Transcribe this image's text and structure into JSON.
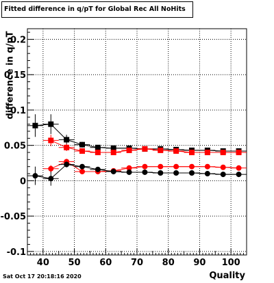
{
  "title": "Fitted difference in q/pT for Global Rec All NoHits",
  "footer": "Sat Oct 17 20:18:16 2020",
  "chart_data": {
    "type": "scatter",
    "xlabel": "Quality",
    "ylabel": "difference in q/pT",
    "xlim": [
      35,
      105
    ],
    "ylim": [
      -0.105,
      0.215
    ],
    "x_ticks": [
      40,
      50,
      60,
      70,
      80,
      90,
      100
    ],
    "y_ticks": [
      -0.1,
      -0.05,
      0,
      0.05,
      0.1,
      0.15,
      0.2
    ],
    "y_tick_labels": [
      "-0.1",
      "-0.05",
      "0",
      "0.05",
      "0.1",
      "0.15",
      "0.2"
    ],
    "grid": true,
    "series": [
      {
        "marker": "square",
        "color": "#000000",
        "x": [
          37.5,
          42.5,
          47.5,
          52.5,
          57.5,
          62.5,
          67.5,
          72.5,
          77.5,
          82.5,
          87.5,
          92.5,
          97.5,
          102.5
        ],
        "y": [
          0.078,
          0.08,
          0.058,
          0.051,
          0.047,
          0.046,
          0.046,
          0.045,
          0.045,
          0.044,
          0.043,
          0.043,
          0.042,
          0.042
        ],
        "yerr": [
          0.016,
          0.014,
          0.007,
          0.004,
          0.003,
          0.002,
          0.002,
          0.002,
          0.002,
          0.002,
          0.002,
          0.002,
          0.002,
          0.002
        ]
      },
      {
        "marker": "square",
        "color": "#ff0000",
        "x": [
          42.5,
          47.5,
          52.5,
          57.5,
          62.5,
          67.5,
          72.5,
          77.5,
          82.5,
          87.5,
          92.5,
          97.5,
          102.5
        ],
        "y": [
          0.057,
          0.047,
          0.042,
          0.04,
          0.04,
          0.043,
          0.045,
          0.043,
          0.042,
          0.04,
          0.04,
          0.04,
          0.04
        ],
        "yerr": [
          0.008,
          0.005,
          0.003,
          0.003,
          0.002,
          0.002,
          0.002,
          0.002,
          0.002,
          0.002,
          0.002,
          0.002,
          0.002
        ]
      },
      {
        "marker": "circle",
        "color": "#ff0000",
        "x": [
          42.5,
          47.5,
          52.5,
          57.5,
          62.5,
          67.5,
          72.5,
          77.5,
          82.5,
          87.5,
          92.5,
          97.5,
          102.5
        ],
        "y": [
          0.017,
          0.027,
          0.013,
          0.013,
          0.014,
          0.018,
          0.02,
          0.02,
          0.02,
          0.02,
          0.02,
          0.019,
          0.018
        ],
        "yerr": [
          0.005,
          0.004,
          0.003,
          0.002,
          0.002,
          0.002,
          0.002,
          0.001,
          0.001,
          0.001,
          0.001,
          0.001,
          0.001
        ]
      },
      {
        "marker": "circle",
        "color": "#000000",
        "x": [
          37.5,
          42.5,
          47.5,
          52.5,
          57.5,
          62.5,
          67.5,
          72.5,
          77.5,
          82.5,
          87.5,
          92.5,
          97.5,
          102.5
        ],
        "y": [
          0.007,
          0.003,
          0.023,
          0.02,
          0.016,
          0.013,
          0.012,
          0.012,
          0.011,
          0.011,
          0.011,
          0.01,
          0.009,
          0.009
        ],
        "yerr": [
          0.013,
          0.01,
          0.004,
          0.003,
          0.002,
          0.002,
          0.002,
          0.002,
          0.001,
          0.001,
          0.001,
          0.001,
          0.001,
          0.001
        ]
      }
    ]
  }
}
